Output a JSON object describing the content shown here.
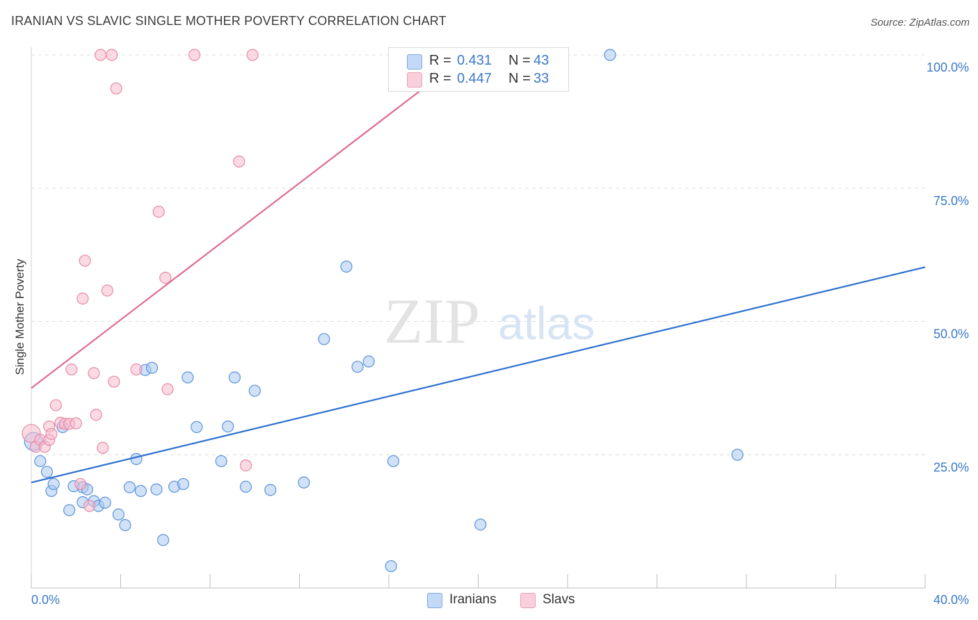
{
  "header": {
    "title": "IRANIAN VS SLAVIC SINGLE MOTHER POVERTY CORRELATION CHART",
    "source": "Source: ZipAtlas.com"
  },
  "colors": {
    "iranians_fill": "#a9c8f3",
    "iranians_stroke": "#5b93d9",
    "iranians_line": "#2b6fcf",
    "slavs_fill": "#f7bccd",
    "slavs_stroke": "#e58aa6",
    "slavs_line": "#e06a92",
    "axis_label": "#3a78c8",
    "grid": "#dcdcdc"
  },
  "legend": {
    "rows": [
      {
        "r_label": "R =",
        "r_value": "0.431",
        "n_label": "N =",
        "n_value": "43"
      },
      {
        "r_label": "R =",
        "r_value": "0.447",
        "n_label": "N =",
        "n_value": "33"
      }
    ]
  },
  "watermark": {
    "zip": "ZIP",
    "atlas": "atlas"
  },
  "chart_data": {
    "type": "scatter",
    "title": "IRANIAN VS SLAVIC SINGLE MOTHER POVERTY CORRELATION CHART",
    "xlabel": "",
    "ylabel": "Single Mother Poverty",
    "xlim": [
      0,
      40
    ],
    "ylim": [
      0,
      100
    ],
    "x_tick_labels": [
      "0.0%",
      "40.0%"
    ],
    "y_tick_labels": [
      "25.0%",
      "50.0%",
      "75.0%",
      "100.0%"
    ],
    "y_ticks": [
      25,
      50,
      75,
      100
    ],
    "grid": true,
    "legend_position": "bottom",
    "series": [
      {
        "name": "Iranians",
        "points": [
          {
            "x": 0.1,
            "y": 27.5
          },
          {
            "x": 0.4,
            "y": 23.8
          },
          {
            "x": 0.7,
            "y": 21.8
          },
          {
            "x": 0.9,
            "y": 18.2
          },
          {
            "x": 1.0,
            "y": 19.5
          },
          {
            "x": 1.4,
            "y": 30.2
          },
          {
            "x": 1.7,
            "y": 14.6
          },
          {
            "x": 1.9,
            "y": 19.1
          },
          {
            "x": 2.3,
            "y": 16.1
          },
          {
            "x": 2.3,
            "y": 18.9
          },
          {
            "x": 2.5,
            "y": 18.5
          },
          {
            "x": 2.8,
            "y": 16.3
          },
          {
            "x": 3.0,
            "y": 15.4
          },
          {
            "x": 3.3,
            "y": 16.0
          },
          {
            "x": 3.9,
            "y": 13.8
          },
          {
            "x": 4.2,
            "y": 11.8
          },
          {
            "x": 4.4,
            "y": 18.9
          },
          {
            "x": 4.7,
            "y": 24.2
          },
          {
            "x": 4.9,
            "y": 18.2
          },
          {
            "x": 5.1,
            "y": 40.9
          },
          {
            "x": 5.4,
            "y": 41.3
          },
          {
            "x": 5.6,
            "y": 18.5
          },
          {
            "x": 5.9,
            "y": 9.0
          },
          {
            "x": 6.4,
            "y": 19.0
          },
          {
            "x": 6.8,
            "y": 19.5
          },
          {
            "x": 7.0,
            "y": 39.5
          },
          {
            "x": 7.4,
            "y": 30.2
          },
          {
            "x": 8.5,
            "y": 23.8
          },
          {
            "x": 8.8,
            "y": 30.3
          },
          {
            "x": 9.1,
            "y": 39.5
          },
          {
            "x": 9.6,
            "y": 19.0
          },
          {
            "x": 10.0,
            "y": 37.0
          },
          {
            "x": 10.7,
            "y": 18.4
          },
          {
            "x": 12.2,
            "y": 19.8
          },
          {
            "x": 13.1,
            "y": 46.7
          },
          {
            "x": 14.1,
            "y": 60.3
          },
          {
            "x": 14.6,
            "y": 41.5
          },
          {
            "x": 15.1,
            "y": 42.5
          },
          {
            "x": 16.1,
            "y": 4.1
          },
          {
            "x": 16.2,
            "y": 23.8
          },
          {
            "x": 20.1,
            "y": 11.9
          },
          {
            "x": 25.9,
            "y": 100.0
          },
          {
            "x": 31.6,
            "y": 25.0
          }
        ]
      },
      {
        "name": "Slavs",
        "points": [
          {
            "x": 0.0,
            "y": 29.0
          },
          {
            "x": 0.2,
            "y": 26.5
          },
          {
            "x": 0.4,
            "y": 27.8
          },
          {
            "x": 0.6,
            "y": 26.5
          },
          {
            "x": 0.8,
            "y": 27.8
          },
          {
            "x": 0.8,
            "y": 30.3
          },
          {
            "x": 0.9,
            "y": 28.9
          },
          {
            "x": 1.1,
            "y": 34.3
          },
          {
            "x": 1.3,
            "y": 31.0
          },
          {
            "x": 1.5,
            "y": 30.8
          },
          {
            "x": 1.7,
            "y": 30.8
          },
          {
            "x": 1.8,
            "y": 41.0
          },
          {
            "x": 2.0,
            "y": 30.9
          },
          {
            "x": 2.2,
            "y": 19.5
          },
          {
            "x": 2.3,
            "y": 54.3
          },
          {
            "x": 2.4,
            "y": 61.4
          },
          {
            "x": 2.6,
            "y": 15.4
          },
          {
            "x": 2.8,
            "y": 40.3
          },
          {
            "x": 2.9,
            "y": 32.5
          },
          {
            "x": 3.1,
            "y": 100.0
          },
          {
            "x": 3.2,
            "y": 26.3
          },
          {
            "x": 3.4,
            "y": 55.8
          },
          {
            "x": 3.6,
            "y": 100.0
          },
          {
            "x": 3.7,
            "y": 38.7
          },
          {
            "x": 3.8,
            "y": 93.7
          },
          {
            "x": 4.7,
            "y": 41.0
          },
          {
            "x": 5.7,
            "y": 70.6
          },
          {
            "x": 6.0,
            "y": 58.2
          },
          {
            "x": 6.1,
            "y": 37.3
          },
          {
            "x": 7.3,
            "y": 100.0
          },
          {
            "x": 9.3,
            "y": 80.0
          },
          {
            "x": 9.6,
            "y": 23.0
          },
          {
            "x": 9.9,
            "y": 100.0
          }
        ]
      }
    ],
    "trend_lines": [
      {
        "name": "Iranians",
        "x": [
          0,
          40
        ],
        "y": [
          19.8,
          60.2
        ]
      },
      {
        "name": "Slavs",
        "x": [
          0,
          19.5
        ],
        "y": [
          37.5,
          100
        ]
      }
    ]
  }
}
